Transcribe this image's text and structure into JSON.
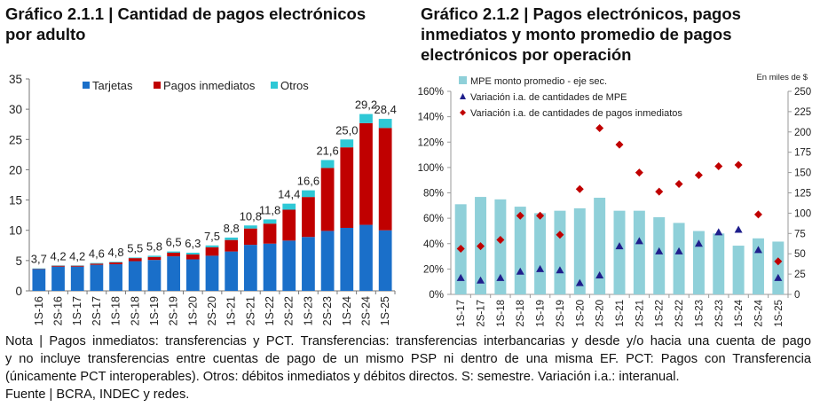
{
  "chart_data": [
    {
      "type": "bar",
      "stacked": true,
      "title": "Gráfico 2.1.1 | Cantidad de pagos electrónicos por adulto",
      "categories": [
        "1S-16",
        "2S-16",
        "1S-17",
        "2S-17",
        "1S-18",
        "2S-18",
        "1S-19",
        "2S-19",
        "1S-20",
        "2S-20",
        "1S-21",
        "2S-21",
        "1S-22",
        "2S-22",
        "1S-23",
        "2S-23",
        "1S-24",
        "2S-24",
        "1S-25"
      ],
      "series": [
        {
          "name": "Tarjetas",
          "color": "#1a6fc9",
          "values": [
            3.6,
            4.0,
            4.0,
            4.3,
            4.4,
            4.9,
            5.1,
            5.7,
            5.2,
            5.8,
            6.5,
            7.6,
            7.8,
            8.3,
            8.9,
            9.9,
            10.4,
            10.9,
            10.0
          ]
        },
        {
          "name": "Pagos inmediatos",
          "color": "#c00000",
          "values": [
            0.05,
            0.15,
            0.15,
            0.2,
            0.3,
            0.5,
            0.5,
            0.6,
            0.8,
            1.4,
            1.9,
            2.7,
            3.3,
            5.1,
            6.6,
            10.4,
            13.3,
            16.8,
            16.9
          ]
        },
        {
          "name": "Otros",
          "color": "#2ec8d6",
          "values": [
            0.05,
            0.05,
            0.05,
            0.1,
            0.1,
            0.1,
            0.2,
            0.2,
            0.3,
            0.3,
            0.4,
            0.5,
            0.7,
            1.0,
            1.1,
            1.3,
            1.3,
            1.5,
            1.5
          ]
        }
      ],
      "totals": [
        "3,7",
        "4,2",
        "4,2",
        "4,6",
        "4,8",
        "5,5",
        "5,8",
        "6,5",
        "6,3",
        "7,5",
        "8,8",
        "10,8",
        "11,8",
        "14,4",
        "16,6",
        "21,6",
        "25,0",
        "29,2",
        "28,4"
      ],
      "ylim": [
        0,
        35
      ],
      "yticks": [
        "0",
        "5",
        "10",
        "15",
        "20",
        "25",
        "30",
        "35"
      ],
      "grid": false,
      "legend": "top"
    },
    {
      "type": "bar+scatter",
      "title": "Gráfico 2.1.2 | Pagos electrónicos, pagos inmediatos y monto promedio de pagos electrónicos por operación",
      "categories": [
        "1S-17",
        "2S-17",
        "1S-18",
        "2S-18",
        "1S-19",
        "2S-19",
        "1S-20",
        "2S-20",
        "1S-21",
        "2S-21",
        "1S-22",
        "2S-22",
        "1S-23",
        "2S-23",
        "1S-24",
        "2S-24",
        "1S-25"
      ],
      "series": [
        {
          "name": "MPE monto promedio - eje sec.",
          "kind": "bar",
          "axis": "right",
          "color": "#8fd0d9",
          "values": [
            111,
            120,
            117,
            108,
            100,
            103,
            106,
            119,
            103,
            103,
            95,
            88,
            78,
            75,
            60,
            69,
            65
          ]
        },
        {
          "name": "Variación i.a. de cantidades de MPE",
          "kind": "triangle",
          "axis": "left",
          "color": "#1f1f8c",
          "values": [
            13,
            11,
            13,
            18,
            20,
            19,
            9,
            15,
            38,
            42,
            34,
            34,
            40,
            49,
            51,
            35,
            13
          ]
        },
        {
          "name": "Variación i.a. de cantidades de pagos inmediatos",
          "kind": "diamond",
          "axis": "left",
          "color": "#c00000",
          "values": [
            36,
            38,
            43,
            62,
            62,
            47,
            83,
            131,
            118,
            96,
            81,
            87,
            94,
            101,
            102,
            63,
            26
          ]
        }
      ],
      "ylim_left": [
        0,
        160
      ],
      "yticks_left": [
        "0%",
        "20%",
        "40%",
        "60%",
        "80%",
        "100%",
        "120%",
        "140%",
        "160%"
      ],
      "ylim_right": [
        0,
        250
      ],
      "yticks_right": [
        "0",
        "25",
        "50",
        "75",
        "100",
        "125",
        "150",
        "175",
        "200",
        "225",
        "250"
      ],
      "right_axis_unit": "En miles de $",
      "grid": false,
      "legend": "top-left"
    }
  ],
  "notes": {
    "lines": [
      "Nota | Pagos inmediatos: transferencias y PCT. Transferencias: transferencias interbancarias y desde y/o hacia una cuenta de pago",
      "y no incluye transferencias entre cuentas de pago de un mismo PSP ni dentro de una misma EF. PCT: Pagos con Transferencia",
      "(únicamente PCT interoperables). Otros: débitos inmediatos y débitos directos. S: semestre. Variación i.a.: interanual.",
      "Fuente | BCRA, INDEC y redes."
    ]
  }
}
